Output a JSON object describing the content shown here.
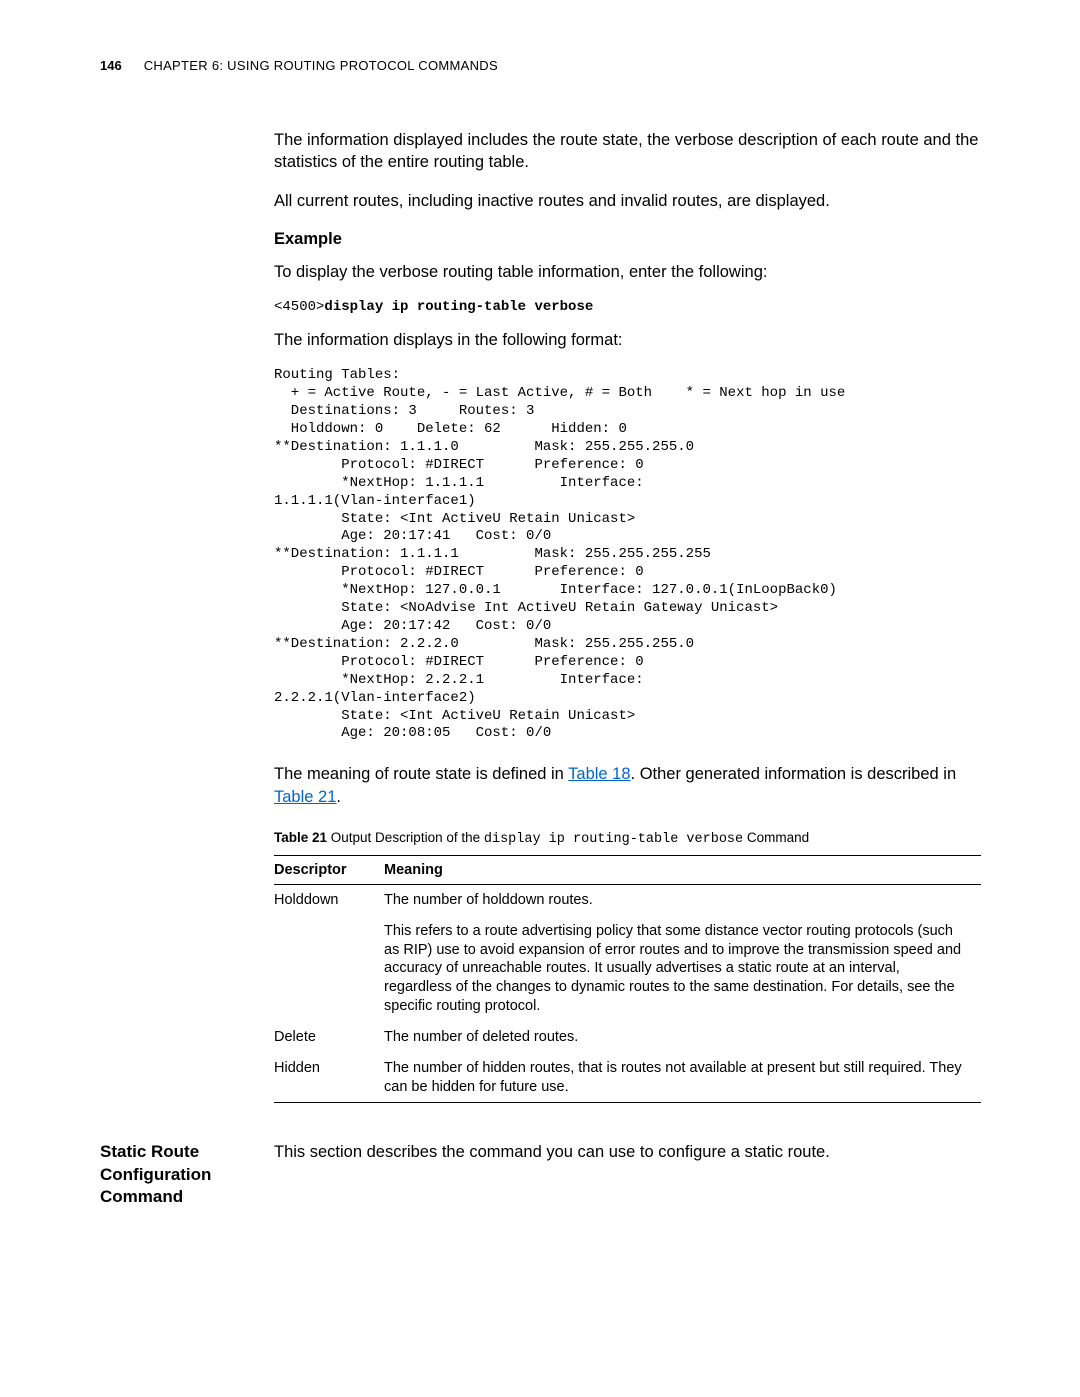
{
  "header": {
    "page_number": "146",
    "chapter_label": "CHAPTER 6: USING ROUTING PROTOCOL COMMANDS"
  },
  "body": {
    "para1": "The information displayed includes the route state, the verbose description of each route and the statistics of the entire routing table.",
    "para2": "All current routes, including inactive routes and invalid routes, are displayed.",
    "example_heading": "Example",
    "example_intro": "To display the verbose routing table information, enter the following:",
    "cmd_prompt": "<4500>",
    "cmd_text": "display ip routing-table verbose",
    "para3": "The information displays in the following format:",
    "routing_output": "Routing Tables:\n  + = Active Route, - = Last Active, # = Both    * = Next hop in use\n  Destinations: 3     Routes: 3\n  Holddown: 0    Delete: 62      Hidden: 0\n**Destination: 1.1.1.0         Mask: 255.255.255.0\n        Protocol: #DIRECT      Preference: 0\n        *NextHop: 1.1.1.1         Interface:\n1.1.1.1(Vlan-interface1)\n        State: <Int ActiveU Retain Unicast>\n        Age: 20:17:41   Cost: 0/0\n**Destination: 1.1.1.1         Mask: 255.255.255.255\n        Protocol: #DIRECT      Preference: 0\n        *NextHop: 127.0.0.1       Interface: 127.0.0.1(InLoopBack0)\n        State: <NoAdvise Int ActiveU Retain Gateway Unicast>\n        Age: 20:17:42   Cost: 0/0\n**Destination: 2.2.2.0         Mask: 255.255.255.0\n        Protocol: #DIRECT      Preference: 0\n        *NextHop: 2.2.2.1         Interface:\n2.2.2.1(Vlan-interface2)\n        State: <Int ActiveU Retain Unicast>\n        Age: 20:08:05   Cost: 0/0",
    "para4_a": "The meaning of route state is defined in ",
    "link_table18": "Table 18",
    "para4_b": ". Other generated information is described in ",
    "link_table21": "Table 21",
    "para4_c": ".",
    "table_label": "Table 21",
    "table_caption_a": "   Output Description of the ",
    "table_caption_mono": "display ip routing-table verbose",
    "table_caption_b": " Command",
    "table": {
      "col1": "Descriptor",
      "col2": "Meaning",
      "rows": [
        {
          "descriptor": "Holddown",
          "meaning": "The number of holddown routes."
        },
        {
          "descriptor": "",
          "meaning": "This refers to a route advertising policy that some distance vector routing protocols (such as RIP) use to avoid expansion of error routes and to improve the transmission speed and accuracy of unreachable routes. It usually advertises a static route at an interval, regardless of the changes to dynamic routes to the same destination. For details, see the specific routing protocol."
        },
        {
          "descriptor": "Delete",
          "meaning": "The number of deleted routes."
        },
        {
          "descriptor": "Hidden",
          "meaning": "The number of hidden routes, that is routes not available at present but still required. They can be hidden for future use."
        }
      ]
    }
  },
  "section": {
    "heading": "Static Route Configuration Command",
    "body": "This section describes the command you can use to configure a static route."
  }
}
